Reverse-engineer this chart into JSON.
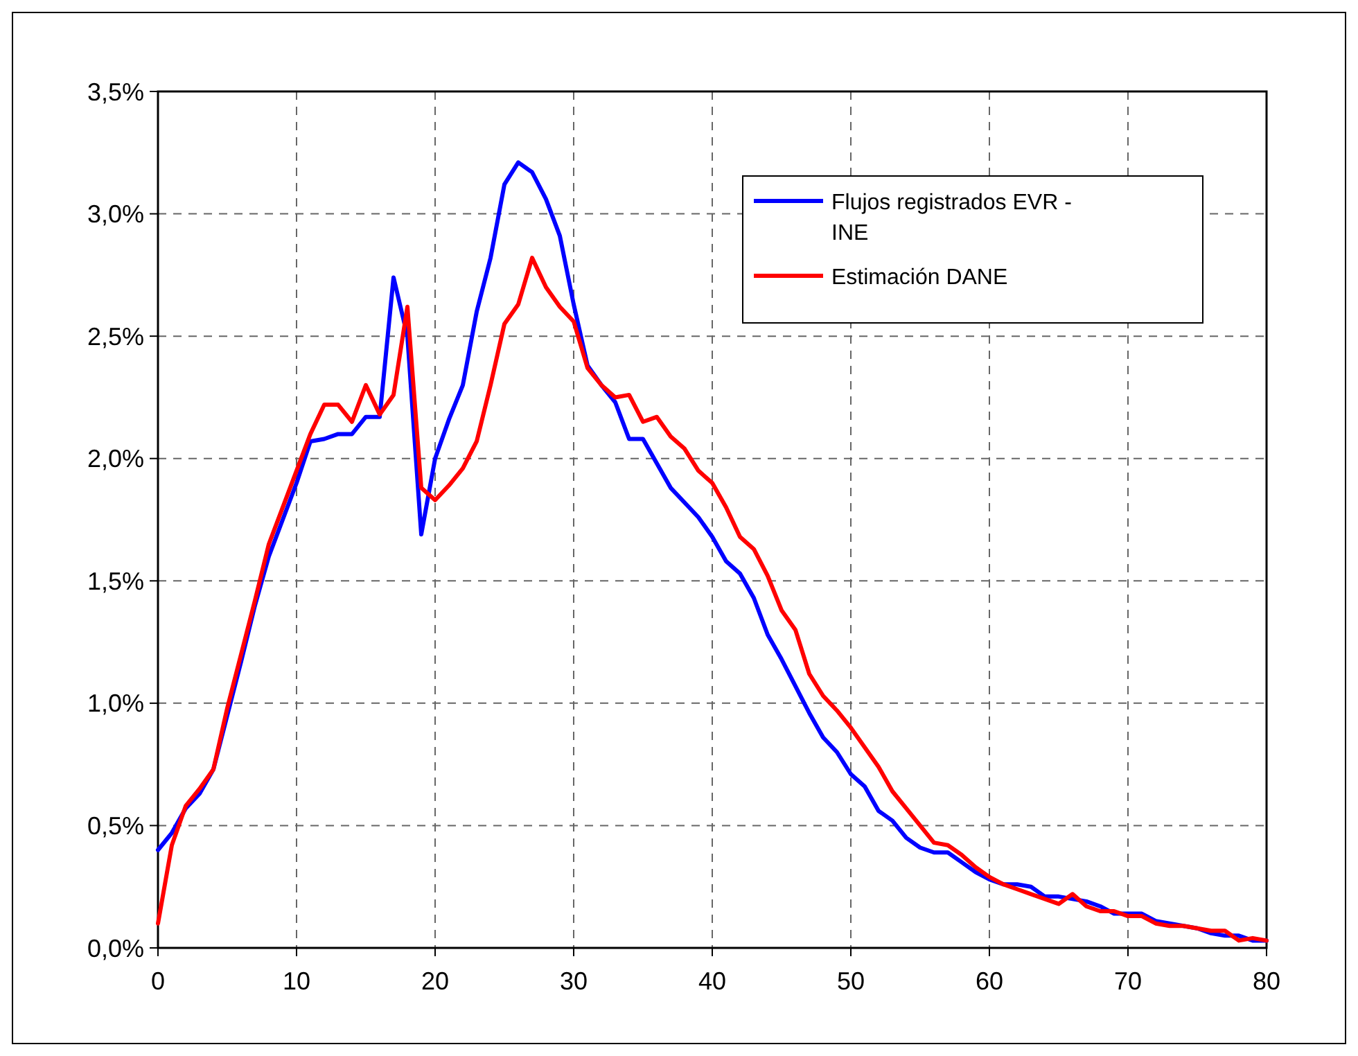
{
  "chart_data": {
    "type": "line",
    "x": [
      0,
      1,
      2,
      3,
      4,
      5,
      6,
      7,
      8,
      9,
      10,
      11,
      12,
      13,
      14,
      15,
      16,
      17,
      18,
      19,
      20,
      21,
      22,
      23,
      24,
      25,
      26,
      27,
      28,
      29,
      30,
      31,
      32,
      33,
      34,
      35,
      36,
      37,
      38,
      39,
      40,
      41,
      42,
      43,
      44,
      45,
      46,
      47,
      48,
      49,
      50,
      51,
      52,
      53,
      54,
      55,
      56,
      57,
      58,
      59,
      60,
      61,
      62,
      63,
      64,
      65,
      66,
      67,
      68,
      69,
      70,
      71,
      72,
      73,
      74,
      75,
      76,
      77,
      78,
      79,
      80
    ],
    "series": [
      {
        "name": "Flujos registrados EVR - INE",
        "color": "#0000ff",
        "values": [
          0.4,
          0.47,
          0.57,
          0.63,
          0.73,
          0.95,
          1.17,
          1.4,
          1.6,
          1.75,
          1.9,
          2.07,
          2.08,
          2.1,
          2.1,
          2.17,
          2.17,
          2.74,
          2.5,
          1.69,
          2.0,
          2.16,
          2.3,
          2.6,
          2.82,
          3.12,
          3.21,
          3.17,
          3.06,
          2.91,
          2.63,
          2.38,
          2.3,
          2.23,
          2.08,
          2.08,
          1.98,
          1.88,
          1.82,
          1.76,
          1.68,
          1.58,
          1.53,
          1.43,
          1.28,
          1.18,
          1.07,
          0.96,
          0.86,
          0.8,
          0.71,
          0.66,
          0.56,
          0.52,
          0.45,
          0.41,
          0.39,
          0.39,
          0.35,
          0.31,
          0.28,
          0.26,
          0.26,
          0.25,
          0.21,
          0.21,
          0.2,
          0.19,
          0.17,
          0.14,
          0.14,
          0.14,
          0.11,
          0.1,
          0.09,
          0.08,
          0.06,
          0.05,
          0.05,
          0.03,
          0.03
        ]
      },
      {
        "name": "Estimación DANE",
        "color": "#ff0000",
        "values": [
          0.1,
          0.42,
          0.58,
          0.65,
          0.73,
          0.98,
          1.2,
          1.42,
          1.65,
          1.8,
          1.95,
          2.1,
          2.22,
          2.22,
          2.15,
          2.3,
          2.18,
          2.26,
          2.62,
          1.88,
          1.83,
          1.89,
          1.96,
          2.07,
          2.3,
          2.55,
          2.63,
          2.82,
          2.7,
          2.62,
          2.56,
          2.37,
          2.3,
          2.25,
          2.26,
          2.15,
          2.17,
          2.09,
          2.04,
          1.95,
          1.9,
          1.8,
          1.68,
          1.63,
          1.52,
          1.38,
          1.3,
          1.12,
          1.03,
          0.97,
          0.9,
          0.82,
          0.74,
          0.64,
          0.57,
          0.5,
          0.43,
          0.42,
          0.38,
          0.33,
          0.29,
          0.26,
          0.24,
          0.22,
          0.2,
          0.18,
          0.22,
          0.17,
          0.15,
          0.15,
          0.13,
          0.13,
          0.1,
          0.09,
          0.09,
          0.08,
          0.07,
          0.07,
          0.03,
          0.04,
          0.03
        ]
      }
    ],
    "xlim": [
      0,
      80
    ],
    "xticks": [
      0,
      10,
      20,
      30,
      40,
      50,
      60,
      70,
      80
    ],
    "ylim": [
      0,
      3.5
    ],
    "yticks": [
      {
        "value": 0,
        "label": "0,0%"
      },
      {
        "value": 0.5,
        "label": "0,5%"
      },
      {
        "value": 1,
        "label": "1,0%"
      },
      {
        "value": 1.5,
        "label": "1,5%"
      },
      {
        "value": 2,
        "label": "2,0%"
      },
      {
        "value": 2.5,
        "label": "2,5%"
      },
      {
        "value": 3,
        "label": "3,0%"
      },
      {
        "value": 3.5,
        "label": "3,5%"
      }
    ],
    "grid": true,
    "legend": "top right",
    "marker": "none",
    "line_style": "solid"
  }
}
